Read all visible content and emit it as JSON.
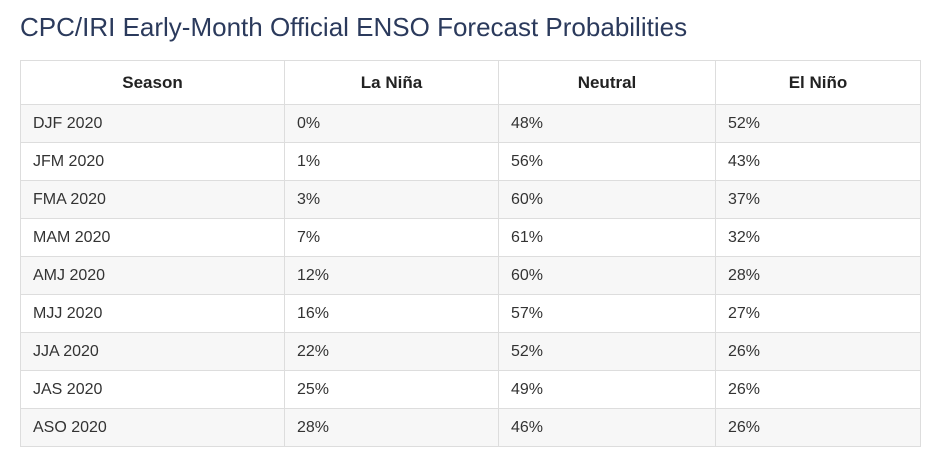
{
  "title": "CPC/IRI Early-Month Official ENSO Forecast Probabilities",
  "table": {
    "headers": [
      "Season",
      "La Niña",
      "Neutral",
      "El Niño"
    ],
    "rows": [
      [
        "DJF 2020",
        "0%",
        "48%",
        "52%"
      ],
      [
        "JFM 2020",
        "1%",
        "56%",
        "43%"
      ],
      [
        "FMA 2020",
        "3%",
        "60%",
        "37%"
      ],
      [
        "MAM 2020",
        "7%",
        "61%",
        "32%"
      ],
      [
        "AMJ 2020",
        "12%",
        "60%",
        "28%"
      ],
      [
        "MJJ 2020",
        "16%",
        "57%",
        "27%"
      ],
      [
        "JJA 2020",
        "22%",
        "52%",
        "26%"
      ],
      [
        "JAS 2020",
        "25%",
        "49%",
        "26%"
      ],
      [
        "ASO 2020",
        "28%",
        "46%",
        "26%"
      ]
    ]
  }
}
